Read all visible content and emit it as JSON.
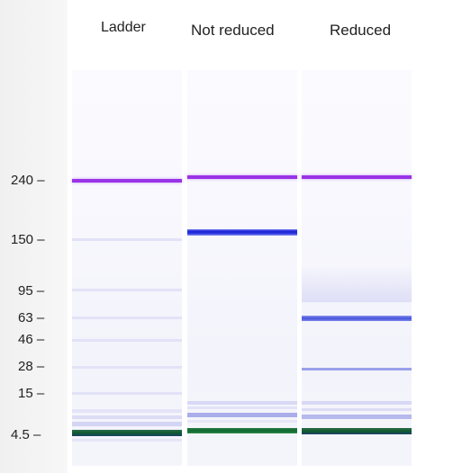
{
  "lanes": [
    {
      "key": "ladder",
      "label": "Ladder"
    },
    {
      "key": "not_reduced",
      "label": "Not reduced"
    },
    {
      "key": "reduced",
      "label": "Reduced"
    }
  ],
  "markers": [
    {
      "label": "240 –"
    },
    {
      "label": "150 –"
    },
    {
      "label": "95 –"
    },
    {
      "label": "63 –"
    },
    {
      "label": "46 –"
    },
    {
      "label": "28 –"
    },
    {
      "label": "15 –"
    },
    {
      "label": "4.5 –"
    }
  ],
  "colors": {
    "upper_marker": "#9a33e6",
    "lower_marker": "#1f7a3a",
    "protein_band": "#1f2fd6",
    "ladder_band": "#d8d8f5"
  }
}
